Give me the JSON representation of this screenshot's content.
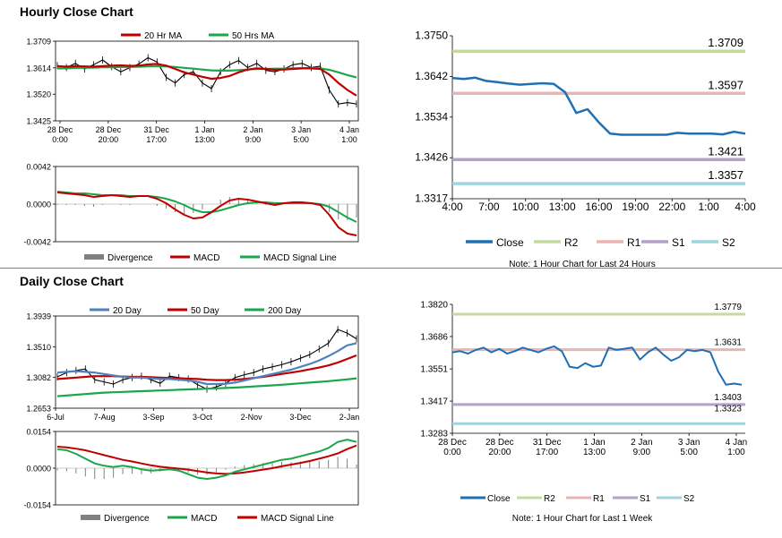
{
  "sections": {
    "hourly_title": "Hourly Close Chart",
    "daily_title": "Daily Close Chart"
  },
  "colors": {
    "close": "#1f6fb5",
    "r2": "#c6d9a0",
    "r1": "#e8b4b4",
    "s1": "#b3a2c7",
    "s2": "#9fd3de",
    "ma_red": "#c00000",
    "ma_green": "#1aa64b",
    "ma_blue": "#4f81bd",
    "divergence": "#808080"
  },
  "chart_data": [
    {
      "id": "hourly_price_ma",
      "type": "line",
      "title": "",
      "legend": [
        "20 Hr MA",
        "50 Hrs MA"
      ],
      "legend_position": "top",
      "y_ticks": [
        "1.3709",
        "1.3614",
        "1.3520",
        "1.3425"
      ],
      "ylim": [
        1.3425,
        1.3709
      ],
      "x_ticks": [
        "28 Dec\n0:00",
        "28 Dec\n20:00",
        "31 Dec\n17:00",
        "1 Jan\n13:00",
        "2 Jan\n9:00",
        "3 Jan\n5:00",
        "4 Jan\n1:00"
      ],
      "series": [
        {
          "name": "Close",
          "values": [
            1.3622,
            1.3615,
            1.363,
            1.361,
            1.3625,
            1.3642,
            1.3618,
            1.36,
            1.3615,
            1.3628,
            1.365,
            1.3635,
            1.358,
            1.356,
            1.359,
            1.36,
            1.356,
            1.354,
            1.36,
            1.3625,
            1.364,
            1.3615,
            1.363,
            1.3605,
            1.36,
            1.361,
            1.3625,
            1.363,
            1.3615,
            1.362,
            1.3535,
            1.3485,
            1.349,
            1.3485
          ]
        },
        {
          "name": "20 Hr MA",
          "values": [
            1.362,
            1.3618,
            1.362,
            1.3619,
            1.3618,
            1.362,
            1.3622,
            1.3623,
            1.3621,
            1.3622,
            1.3626,
            1.3628,
            1.3622,
            1.361,
            1.3598,
            1.359,
            1.3582,
            1.3575,
            1.3578,
            1.3585,
            1.3598,
            1.3608,
            1.3612,
            1.361,
            1.3607,
            1.3608,
            1.361,
            1.3612,
            1.3612,
            1.361,
            1.359,
            1.356,
            1.3535,
            1.3515
          ]
        },
        {
          "name": "50 Hrs MA",
          "values": [
            1.3612,
            1.3612,
            1.3614,
            1.3614,
            1.3615,
            1.3616,
            1.3616,
            1.3617,
            1.3617,
            1.3618,
            1.3619,
            1.362,
            1.3619,
            1.3617,
            1.3614,
            1.3611,
            1.3608,
            1.3605,
            1.3604,
            1.3604,
            1.3606,
            1.3608,
            1.361,
            1.361,
            1.3611,
            1.3611,
            1.3612,
            1.3613,
            1.3613,
            1.3612,
            1.3607,
            1.3598,
            1.3588,
            1.358
          ]
        }
      ]
    },
    {
      "id": "hourly_macd",
      "type": "line",
      "legend": [
        "Divergence",
        "MACD",
        "MACD Signal Line"
      ],
      "legend_position": "bottom",
      "y_ticks": [
        "0.0042",
        "0.0000",
        "-0.0042"
      ],
      "ylim": [
        -0.0042,
        0.0042
      ],
      "series": [
        {
          "name": "MACD",
          "values": [
            0.0013,
            0.0012,
            0.0011,
            0.001,
            0.0008,
            0.0009,
            0.001,
            0.0009,
            0.0008,
            0.0009,
            0.0009,
            0.0006,
            0.0001,
            -0.0006,
            -0.0012,
            -0.0016,
            -0.0015,
            -0.0009,
            -0.0002,
            0.0004,
            0.0006,
            0.0005,
            0.0003,
            0.0001,
            -0.0001,
            0.0001,
            0.0002,
            0.0002,
            0.0001,
            -0.0001,
            -0.0012,
            -0.0026,
            -0.0033,
            -0.0035
          ]
        },
        {
          "name": "MACD Signal Line",
          "values": [
            0.0014,
            0.0013,
            0.0012,
            0.0012,
            0.0011,
            0.001,
            0.001,
            0.001,
            0.0009,
            0.0009,
            0.0009,
            0.0008,
            0.0006,
            0.0003,
            -0.0001,
            -0.0006,
            -0.0009,
            -0.0009,
            -0.0007,
            -0.0004,
            -0.0001,
            0.0001,
            0.0002,
            0.0002,
            0.0001,
            0.0001,
            0.0001,
            0.0001,
            0.0001,
            0.0,
            -0.0003,
            -0.0009,
            -0.0015,
            -0.002
          ]
        },
        {
          "name": "Divergence",
          "values": [
            -0.0001,
            -0.0001,
            -0.0001,
            -0.0002,
            -0.0003,
            -0.0001,
            0.0,
            -0.0001,
            -0.0001,
            0.0,
            0.0,
            -0.0002,
            -0.0005,
            -0.0009,
            -0.0011,
            -0.001,
            -0.0006,
            0.0,
            0.0005,
            0.0008,
            0.0007,
            0.0004,
            0.0001,
            -0.0001,
            -0.0002,
            0.0,
            0.0001,
            0.0001,
            0.0,
            -0.0001,
            -0.0009,
            -0.0017,
            -0.0018,
            -0.0015
          ]
        }
      ]
    },
    {
      "id": "hourly_levels",
      "type": "line",
      "y_ticks": [
        "1.3750",
        "1.3642",
        "1.3534",
        "1.3426",
        "1.3317"
      ],
      "ylim": [
        1.3317,
        1.375
      ],
      "x_ticks": [
        "4:00",
        "7:00",
        "10:00",
        "13:00",
        "16:00",
        "19:00",
        "22:00",
        "1:00",
        "4:00"
      ],
      "levels": [
        {
          "name": "R2",
          "value": 1.3709,
          "label": "1.3709"
        },
        {
          "name": "R1",
          "value": 1.3597,
          "label": "1.3597"
        },
        {
          "name": "S1",
          "value": 1.3421,
          "label": "1.3421"
        },
        {
          "name": "S2",
          "value": 1.3357,
          "label": "1.3357"
        }
      ],
      "close": [
        1.3638,
        1.3635,
        1.3639,
        1.363,
        1.3627,
        1.3623,
        1.362,
        1.3622,
        1.3624,
        1.3622,
        1.36,
        1.3545,
        1.3555,
        1.352,
        1.349,
        1.3487,
        1.3487,
        1.3487,
        1.3487,
        1.3487,
        1.3492,
        1.349,
        1.349,
        1.349,
        1.3488,
        1.3495,
        1.349
      ],
      "legend": [
        "Close",
        "R2",
        "R1",
        "S1",
        "S2"
      ],
      "note": "Note: 1 Hour Chart for Last 24 Hours"
    },
    {
      "id": "daily_price_ma",
      "type": "line",
      "legend": [
        "20 Day",
        "50 Day",
        "200 Day"
      ],
      "legend_position": "top",
      "y_ticks": [
        "1.3939",
        "1.3510",
        "1.3082",
        "1.2653"
      ],
      "ylim": [
        1.2653,
        1.3939
      ],
      "x_ticks": [
        "6-Jul",
        "7-Aug",
        "3-Sep",
        "3-Oct",
        "2-Nov",
        "3-Dec",
        "2-Jan"
      ],
      "series": [
        {
          "name": "Close",
          "values": [
            1.309,
            1.315,
            1.318,
            1.32,
            1.305,
            1.302,
            1.299,
            1.305,
            1.308,
            1.31,
            1.305,
            1.3,
            1.31,
            1.308,
            1.306,
            1.298,
            1.292,
            1.295,
            1.3,
            1.308,
            1.312,
            1.315,
            1.32,
            1.323,
            1.326,
            1.33,
            1.335,
            1.34,
            1.348,
            1.356,
            1.375,
            1.37,
            1.362
          ]
        },
        {
          "name": "20 Day",
          "values": [
            1.315,
            1.316,
            1.317,
            1.316,
            1.315,
            1.313,
            1.311,
            1.309,
            1.308,
            1.308,
            1.307,
            1.306,
            1.306,
            1.305,
            1.304,
            1.302,
            1.299,
            1.299,
            1.2995,
            1.301,
            1.304,
            1.307,
            1.31,
            1.313,
            1.316,
            1.319,
            1.323,
            1.327,
            1.332,
            1.338,
            1.345,
            1.353,
            1.356
          ]
        },
        {
          "name": "50 Day",
          "values": [
            1.306,
            1.307,
            1.308,
            1.309,
            1.31,
            1.31,
            1.31,
            1.3095,
            1.309,
            1.309,
            1.3085,
            1.308,
            1.3075,
            1.307,
            1.3065,
            1.306,
            1.305,
            1.3045,
            1.3045,
            1.305,
            1.306,
            1.3075,
            1.309,
            1.311,
            1.313,
            1.315,
            1.317,
            1.3195,
            1.322,
            1.325,
            1.329,
            1.334,
            1.339
          ]
        },
        {
          "name": "200 Day",
          "values": [
            1.282,
            1.283,
            1.284,
            1.285,
            1.286,
            1.287,
            1.2875,
            1.288,
            1.2885,
            1.289,
            1.2895,
            1.29,
            1.2905,
            1.291,
            1.2915,
            1.292,
            1.2925,
            1.293,
            1.2935,
            1.294,
            1.2948,
            1.2956,
            1.2964,
            1.2972,
            1.298,
            1.299,
            1.3,
            1.301,
            1.302,
            1.303,
            1.3042,
            1.3055,
            1.307
          ]
        }
      ]
    },
    {
      "id": "daily_macd",
      "type": "line",
      "legend": [
        "Divergence",
        "MACD",
        "MACD Signal Line"
      ],
      "legend_position": "bottom",
      "y_ticks": [
        "0.0154",
        "0.0000",
        "-0.0154"
      ],
      "ylim": [
        -0.0154,
        0.0154
      ],
      "series": [
        {
          "name": "MACD",
          "values": [
            0.008,
            0.0075,
            0.006,
            0.004,
            0.002,
            0.001,
            0.0005,
            0.001,
            0.0005,
            -0.0005,
            -0.001,
            -0.0008,
            -0.0005,
            -0.001,
            -0.0025,
            -0.004,
            -0.0045,
            -0.004,
            -0.003,
            -0.0015,
            -0.0005,
            0.0005,
            0.0015,
            0.0025,
            0.0035,
            0.004,
            0.005,
            0.006,
            0.007,
            0.0085,
            0.011,
            0.012,
            0.011
          ]
        },
        {
          "name": "MACD Signal Line",
          "values": [
            0.009,
            0.0087,
            0.0082,
            0.0075,
            0.0065,
            0.0055,
            0.0045,
            0.0035,
            0.0028,
            0.002,
            0.0012,
            0.0006,
            0.0002,
            -0.0002,
            -0.0006,
            -0.0012,
            -0.0018,
            -0.0022,
            -0.0024,
            -0.0022,
            -0.0018,
            -0.0012,
            -0.0006,
            0.0,
            0.0008,
            0.0015,
            0.0022,
            0.003,
            0.004,
            0.005,
            0.0062,
            0.008,
            0.0095
          ]
        },
        {
          "name": "Divergence",
          "values": [
            -0.001,
            -0.0012,
            -0.0022,
            -0.0035,
            -0.0045,
            -0.0045,
            -0.004,
            -0.0025,
            -0.0023,
            -0.0025,
            -0.0022,
            -0.0014,
            -0.0007,
            -0.0008,
            -0.0019,
            -0.0028,
            -0.0027,
            -0.0018,
            -0.0006,
            0.0007,
            0.0013,
            0.0017,
            0.0021,
            0.0025,
            0.0027,
            0.0025,
            0.0028,
            0.003,
            0.003,
            0.0035,
            0.0048,
            0.004,
            0.0015
          ]
        }
      ]
    },
    {
      "id": "daily_levels",
      "type": "line",
      "y_ticks": [
        "1.3820",
        "1.3686",
        "1.3551",
        "1.3417",
        "1.3283"
      ],
      "ylim": [
        1.3283,
        1.382
      ],
      "x_ticks": [
        "28 Dec\n0:00",
        "28 Dec\n20:00",
        "31 Dec\n17:00",
        "1 Jan\n13:00",
        "2 Jan\n9:00",
        "3 Jan\n5:00",
        "4 Jan\n1:00"
      ],
      "levels": [
        {
          "name": "R2",
          "value": 1.3779,
          "label": "1.3779"
        },
        {
          "name": "R1",
          "value": 1.3631,
          "label": "1.3631"
        },
        {
          "name": "S1",
          "value": 1.3403,
          "label": "1.3403"
        },
        {
          "name": "S2",
          "value": 1.3323,
          "label": "1.3323"
        }
      ],
      "close": [
        1.362,
        1.3625,
        1.3615,
        1.363,
        1.364,
        1.362,
        1.3635,
        1.3615,
        1.3625,
        1.364,
        1.363,
        1.362,
        1.3635,
        1.3645,
        1.3625,
        1.356,
        1.3555,
        1.3575,
        1.356,
        1.3565,
        1.364,
        1.363,
        1.3635,
        1.364,
        1.359,
        1.362,
        1.364,
        1.361,
        1.3585,
        1.36,
        1.363,
        1.3625,
        1.363,
        1.362,
        1.354,
        1.3485,
        1.349,
        1.3485
      ],
      "legend": [
        "Close",
        "R2",
        "R1",
        "S1",
        "S2"
      ],
      "note": "Note: 1 Hour Chart for Last 1 Week"
    }
  ]
}
